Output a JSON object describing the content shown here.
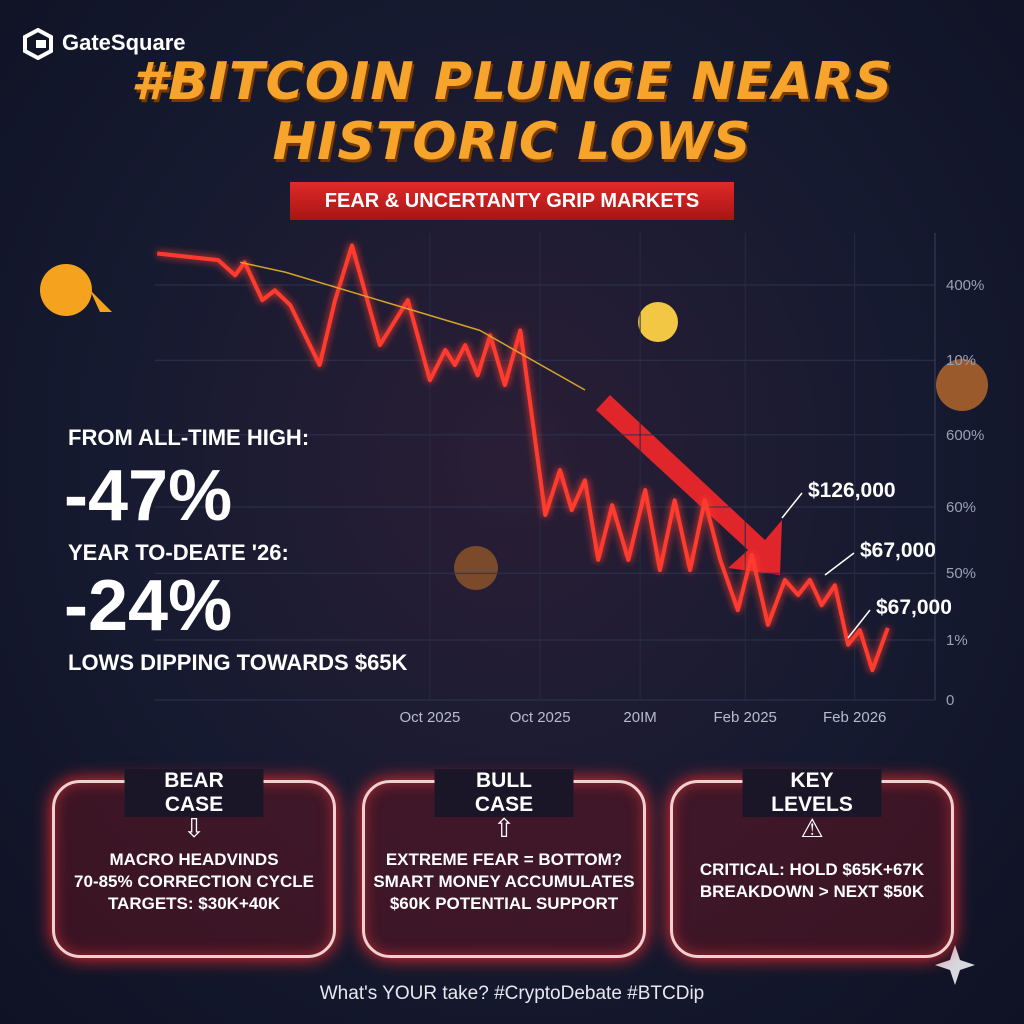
{
  "brand": "GateSquare",
  "title": [
    "#BITCOIN PLUNGE NEARS",
    "HISTORIC LOWS"
  ],
  "subtitle": "FEAR & UNCERTANTY GRIP MARKETS",
  "stats": {
    "ath_label": "FROM ALL-TIME HIGH:",
    "ath_value": "-47%",
    "ytd_label": "YEAR TO-DEATE '26:",
    "ytd_value": "-24%",
    "note": "LOWS DIPPING TOWARDS $65K"
  },
  "chart_data": {
    "type": "line",
    "xlim": [
      0,
      100
    ],
    "ylim": [
      0,
      105
    ],
    "xticks": [
      {
        "value": 37.4,
        "label": "Oct 2025"
      },
      {
        "value": 52.4,
        "label": "Oct 2025"
      },
      {
        "value": 66.0,
        "label": "20IM"
      },
      {
        "value": 80.3,
        "label": "Feb 2025"
      },
      {
        "value": 95.2,
        "label": "Feb 2026"
      }
    ],
    "yticks": [
      {
        "value": 93.3,
        "label": "400%"
      },
      {
        "value": 76.4,
        "label": "10%"
      },
      {
        "value": 59.6,
        "label": "600%"
      },
      {
        "value": 43.4,
        "label": "60%"
      },
      {
        "value": 28.5,
        "label": "50%"
      },
      {
        "value": 13.5,
        "label": "1%"
      },
      0
    ],
    "grid": true,
    "series": [
      {
        "color": "#ff3b2f",
        "x": [
          0.3,
          8.6,
          10.9,
          12.2,
          14.6,
          16.3,
          18.4,
          22.4,
          24.5,
          26.8,
          30.6,
          34.4,
          37.4,
          39.5,
          40.8,
          42.2,
          43.9,
          45.6,
          47.6,
          49.7,
          53.1,
          55.1,
          56.7,
          58.5,
          60.3,
          62.2,
          64.4,
          66.7,
          68.7,
          70.7,
          72.8,
          74.8,
          76.9,
          79.3,
          81.2,
          83.4,
          85.7,
          87.5,
          89.1,
          90.7,
          92.5,
          94.3,
          95.9,
          97.6,
          99.7
        ],
        "values": [
          100.4,
          98.9,
          95.5,
          98.4,
          89.9,
          92.1,
          88.8,
          75.3,
          89.9,
          102.2,
          79.8,
          89.9,
          71.9,
          78.7,
          75.3,
          79.8,
          73.0,
          82.0,
          70.8,
          83.1,
          41.6,
          51.7,
          42.7,
          49.4,
          31.5,
          43.8,
          31.5,
          47.2,
          29.2,
          44.9,
          29.2,
          44.9,
          31.5,
          20.2,
          32.6,
          16.9,
          27.0,
          23.6,
          27.0,
          21.3,
          25.8,
          12.4,
          15.7,
          6.7,
          16.2
        ]
      },
      {
        "color": "#d4a32a",
        "x": [
          11.6,
          17.7,
          44.2,
          58.5
        ],
        "values": [
          98.4,
          96.2,
          83.1,
          69.7
        ]
      }
    ],
    "annotations": [
      "$126,000",
      "$67,000",
      "$67,000"
    ]
  },
  "cards": [
    {
      "title": "BEAR CASE",
      "lines": [
        "MACRO HEADVINDS",
        "70-85% CORRECTION CYCLE",
        "TARGETS: $30K+40K"
      ]
    },
    {
      "title": "BULL CASE",
      "lines": [
        "EXTREME FEAR = BOTTOM?",
        "SMART MONEY ACCUMULATES",
        "$60K POTENTIAL SUPPORT"
      ]
    },
    {
      "title": "KEY LEVELS",
      "lines": [
        "CRITICAL: HOLD $65K+67K",
        "BREAKDOWN > NEXT $50K"
      ]
    }
  ],
  "footer": "What's YOUR take? #CryptoDebate #BTCDip"
}
